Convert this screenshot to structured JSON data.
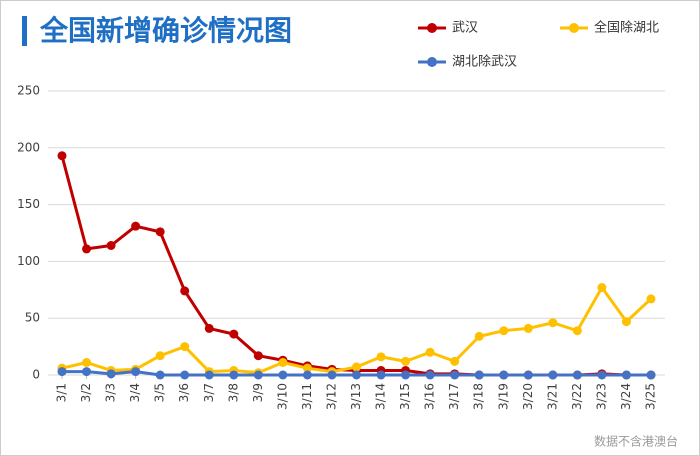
{
  "chart_data": {
    "type": "line",
    "title": "全国新增确诊情况图",
    "categories": [
      "3/1",
      "3/2",
      "3/3",
      "3/4",
      "3/5",
      "3/6",
      "3/7",
      "3/8",
      "3/9",
      "3/10",
      "3/11",
      "3/12",
      "3/13",
      "3/14",
      "3/15",
      "3/16",
      "3/17",
      "3/18",
      "3/19",
      "3/20",
      "3/21",
      "3/22",
      "3/23",
      "3/24",
      "3/25"
    ],
    "series": [
      {
        "name": "武汉",
        "color": "#c00000",
        "values": [
          193,
          111,
          114,
          131,
          126,
          74,
          41,
          36,
          17,
          13,
          8,
          5,
          4,
          4,
          4,
          1,
          1,
          0,
          0,
          0,
          0,
          0,
          1,
          0,
          0
        ]
      },
      {
        "name": "全国除湖北",
        "color": "#ffc000",
        "values": [
          6,
          11,
          4,
          5,
          17,
          25,
          3,
          4,
          2,
          11,
          6,
          3,
          7,
          16,
          12,
          20,
          12,
          34,
          39,
          41,
          46,
          39,
          77,
          47,
          67
        ]
      },
      {
        "name": "湖北除武汉",
        "color": "#4472c4",
        "values": [
          3,
          3,
          1,
          3,
          0,
          0,
          0,
          0,
          0,
          0,
          0,
          0,
          0,
          0,
          0,
          0,
          0,
          0,
          0,
          0,
          0,
          0,
          0,
          0,
          0
        ]
      }
    ],
    "ylim": [
      0,
      250
    ],
    "yticks": [
      0,
      50,
      100,
      150,
      200,
      250
    ],
    "grid": true,
    "footnote": "数据不含港澳台"
  }
}
